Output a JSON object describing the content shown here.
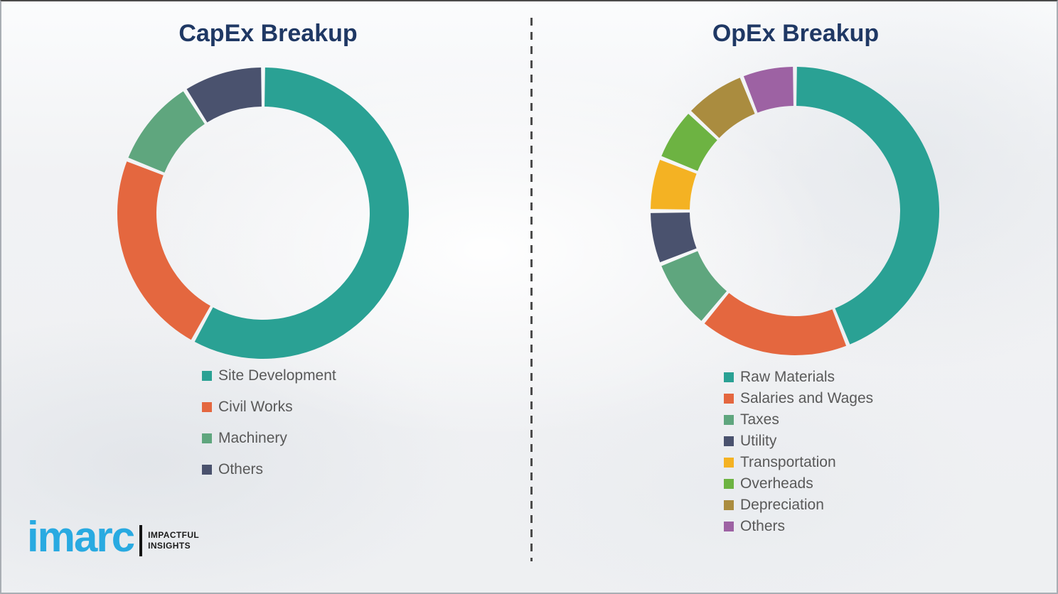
{
  "page": {
    "background_color": "#f1f2f4",
    "border_color": "#a9aeb4",
    "divider_color": "#4c4c4c",
    "title_color": "#1f3864",
    "legend_text_color": "#595959"
  },
  "chart_data": [
    {
      "type": "pie",
      "subtype": "donut",
      "title": "CapEx Breakup",
      "start_angle_deg": 0,
      "direction": "clockwise",
      "legend_position": "bottom-left",
      "note": "no numeric labels printed; percentages estimated from arc angles",
      "series": [
        {
          "label": "Site Development",
          "value_pct": 58,
          "color": "#2aa194"
        },
        {
          "label": "Civil Works",
          "value_pct": 23,
          "color": "#e4673f"
        },
        {
          "label": "Machinery",
          "value_pct": 10,
          "color": "#5fa67e"
        },
        {
          "label": "Others",
          "value_pct": 9,
          "color": "#4a526e"
        }
      ]
    },
    {
      "type": "pie",
      "subtype": "donut",
      "title": "OpEx Breakup",
      "start_angle_deg": 0,
      "direction": "clockwise",
      "legend_position": "bottom-left",
      "note": "no numeric labels printed; percentages estimated from arc angles",
      "series": [
        {
          "label": "Raw Materials",
          "value_pct": 44,
          "color": "#2aa194"
        },
        {
          "label": "Salaries and Wages",
          "value_pct": 17,
          "color": "#e4673f"
        },
        {
          "label": "Taxes",
          "value_pct": 8,
          "color": "#5fa67e"
        },
        {
          "label": "Utility",
          "value_pct": 6,
          "color": "#4a526e"
        },
        {
          "label": "Transportation",
          "value_pct": 6,
          "color": "#f4b223"
        },
        {
          "label": "Overheads",
          "value_pct": 6,
          "color": "#6db342"
        },
        {
          "label": "Depreciation",
          "value_pct": 7,
          "color": "#aa8c3f"
        },
        {
          "label": "Others",
          "value_pct": 6,
          "color": "#9d62a3"
        }
      ]
    }
  ],
  "logo": {
    "brand": "imarc",
    "tagline_line1": "IMPACTFUL",
    "tagline_line2": "INSIGHTS",
    "brand_color": "#29aae1",
    "tagline_color": "#1b1b1b"
  }
}
